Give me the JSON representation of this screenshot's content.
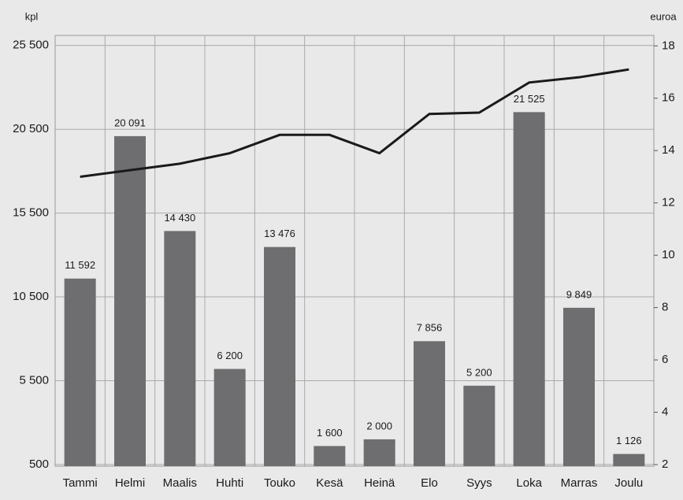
{
  "chart_data": {
    "type": "bar_line",
    "ylabel": "kpl",
    "y2label": "euroa",
    "categories": [
      "Tammi",
      "Helmi",
      "Maalis",
      "Huhti",
      "Touko",
      "Kesä",
      "Heinä",
      "Elo",
      "Syys",
      "Loka",
      "Marras",
      "Joulu"
    ],
    "series": [
      {
        "name": "kpl",
        "type": "bar",
        "axis": "y",
        "color": "#6e6e70",
        "values": [
          11592,
          20091,
          14430,
          6200,
          13476,
          1600,
          2000,
          7856,
          5200,
          21525,
          9849,
          1126
        ],
        "value_labels": [
          "11 592",
          "20 091",
          "14 430",
          "6 200",
          "13 476",
          "1 600",
          "2 000",
          "7 856",
          "5 200",
          "21 525",
          "9 849",
          "1 126"
        ]
      },
      {
        "name": "euroa",
        "type": "line",
        "axis": "y2",
        "color": "#1a1a1a",
        "values": [
          13.0,
          13.25,
          13.5,
          13.9,
          14.6,
          14.6,
          13.9,
          15.4,
          15.45,
          16.6,
          16.8,
          17.1
        ]
      }
    ],
    "ylim": [
      400,
      26100
    ],
    "yticks": [
      {
        "value": 500,
        "label": "500"
      },
      {
        "value": 5500,
        "label": "5 500"
      },
      {
        "value": 10500,
        "label": "10 500"
      },
      {
        "value": 15500,
        "label": "15 500"
      },
      {
        "value": 20500,
        "label": "20 500"
      },
      {
        "value": 25500,
        "label": "25 500"
      }
    ],
    "y2lim": [
      1.94,
      18.4
    ],
    "y2ticks": [
      2,
      4,
      6,
      8,
      10,
      12,
      14,
      16,
      18
    ],
    "grid": true
  }
}
